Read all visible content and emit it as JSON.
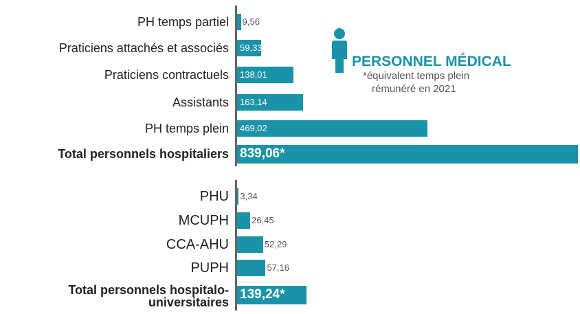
{
  "header": {
    "title": "PERSONNEL MÉDICAL",
    "note": [
      "*équivalent temps plein",
      "rémunéré en 2021"
    ]
  },
  "chart_data": [
    {
      "type": "bar",
      "orientation": "horizontal",
      "color": "#1a93a8",
      "categories": [
        "PH temps partiel",
        "Praticiens attachés et associés",
        "Praticiens contractuels",
        "Assistants",
        "PH temps plein",
        "Total personnels hospitaliers"
      ],
      "values": [
        9.56,
        59.33,
        138.01,
        163.14,
        469.02,
        839.06
      ],
      "value_labels": [
        "9,56",
        "59,33",
        "138,01",
        "163,14",
        "469,02",
        "839,06*"
      ]
    },
    {
      "type": "bar",
      "orientation": "horizontal",
      "color": "#1a93a8",
      "categories": [
        "PHU",
        "MCUPH",
        "CCA-AHU",
        "PUPH",
        "Total personnels hospitalo-universitaires"
      ],
      "values": [
        3.34,
        26.45,
        52.29,
        57.16,
        139.24
      ],
      "value_labels": [
        "3,34",
        "26,45",
        "52,29",
        "57,16",
        "139,24*"
      ]
    }
  ]
}
